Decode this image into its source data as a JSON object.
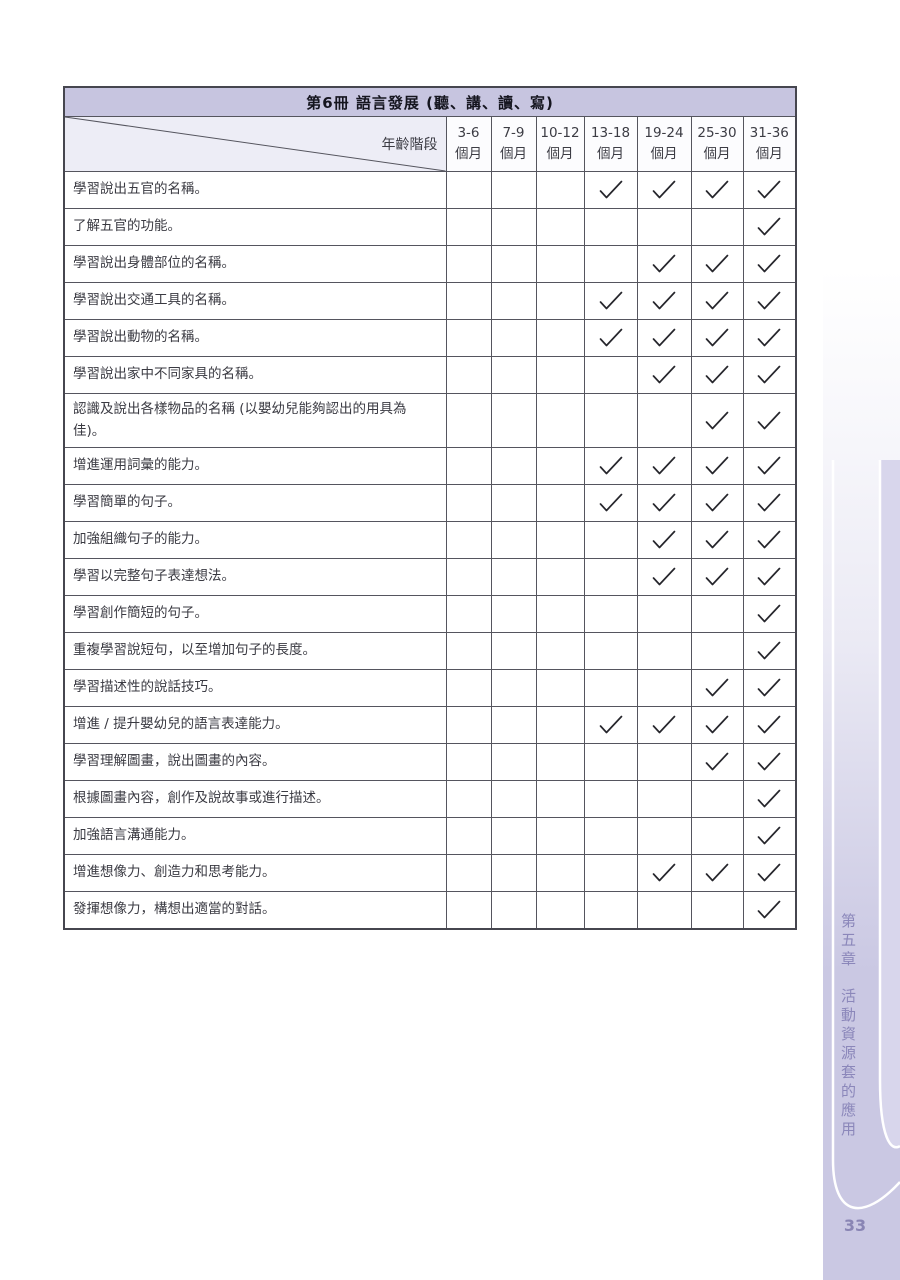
{
  "page": {
    "number": "33"
  },
  "sidebar": {
    "chapter_vertical": "第五章",
    "section_vertical": "活動資源套的應用",
    "text_color": "#8b87ba",
    "band_color": "#cac8e3",
    "swoosh_inner_color": "#d8d6ec"
  },
  "table": {
    "title": "第6冊  語言發展 (聽、講、讀、寫)",
    "title_band_color": "#c7c5e0",
    "corner_label": "年齡階段",
    "age_unit": "個月",
    "age_columns": [
      "3-6",
      "7-9",
      "10-12",
      "13-18",
      "19-24",
      "25-30",
      "31-36"
    ],
    "checkmark_icon": "check",
    "rows": [
      {
        "label": "學習說出五官的名稱。",
        "checks": [
          0,
          0,
          0,
          1,
          1,
          1,
          1
        ]
      },
      {
        "label": "了解五官的功能。",
        "checks": [
          0,
          0,
          0,
          0,
          0,
          0,
          1
        ]
      },
      {
        "label": "學習說出身體部位的名稱。",
        "checks": [
          0,
          0,
          0,
          0,
          1,
          1,
          1
        ]
      },
      {
        "label": "學習說出交通工具的名稱。",
        "checks": [
          0,
          0,
          0,
          1,
          1,
          1,
          1
        ]
      },
      {
        "label": "學習說出動物的名稱。",
        "checks": [
          0,
          0,
          0,
          1,
          1,
          1,
          1
        ]
      },
      {
        "label": "學習說出家中不同家具的名稱。",
        "checks": [
          0,
          0,
          0,
          0,
          1,
          1,
          1
        ]
      },
      {
        "label": "認識及說出各樣物品的名稱 (以嬰幼兒能夠認出的用具為佳)。",
        "checks": [
          0,
          0,
          0,
          0,
          0,
          1,
          1
        ]
      },
      {
        "label": "增進運用詞彙的能力。",
        "checks": [
          0,
          0,
          0,
          1,
          1,
          1,
          1
        ]
      },
      {
        "label": "學習簡單的句子。",
        "checks": [
          0,
          0,
          0,
          1,
          1,
          1,
          1
        ]
      },
      {
        "label": "加強組織句子的能力。",
        "checks": [
          0,
          0,
          0,
          0,
          1,
          1,
          1
        ]
      },
      {
        "label": "學習以完整句子表達想法。",
        "checks": [
          0,
          0,
          0,
          0,
          1,
          1,
          1
        ]
      },
      {
        "label": "學習創作簡短的句子。",
        "checks": [
          0,
          0,
          0,
          0,
          0,
          0,
          1
        ]
      },
      {
        "label": "重複學習說短句，以至增加句子的長度。",
        "checks": [
          0,
          0,
          0,
          0,
          0,
          0,
          1
        ]
      },
      {
        "label": "學習描述性的說話技巧。",
        "checks": [
          0,
          0,
          0,
          0,
          0,
          1,
          1
        ]
      },
      {
        "label": "增進 / 提升嬰幼兒的語言表達能力。",
        "checks": [
          0,
          0,
          0,
          1,
          1,
          1,
          1
        ]
      },
      {
        "label": "學習理解圖畫，說出圖畫的內容。",
        "checks": [
          0,
          0,
          0,
          0,
          0,
          1,
          1
        ]
      },
      {
        "label": "根據圖畫內容，創作及說故事或進行描述。",
        "checks": [
          0,
          0,
          0,
          0,
          0,
          0,
          1
        ]
      },
      {
        "label": "加強語言溝通能力。",
        "checks": [
          0,
          0,
          0,
          0,
          0,
          0,
          1
        ]
      },
      {
        "label": "增進想像力、創造力和思考能力。",
        "checks": [
          0,
          0,
          0,
          0,
          1,
          1,
          1
        ]
      },
      {
        "label": "發揮想像力，構想出適當的對話。",
        "checks": [
          0,
          0,
          0,
          0,
          0,
          0,
          1
        ]
      }
    ]
  }
}
